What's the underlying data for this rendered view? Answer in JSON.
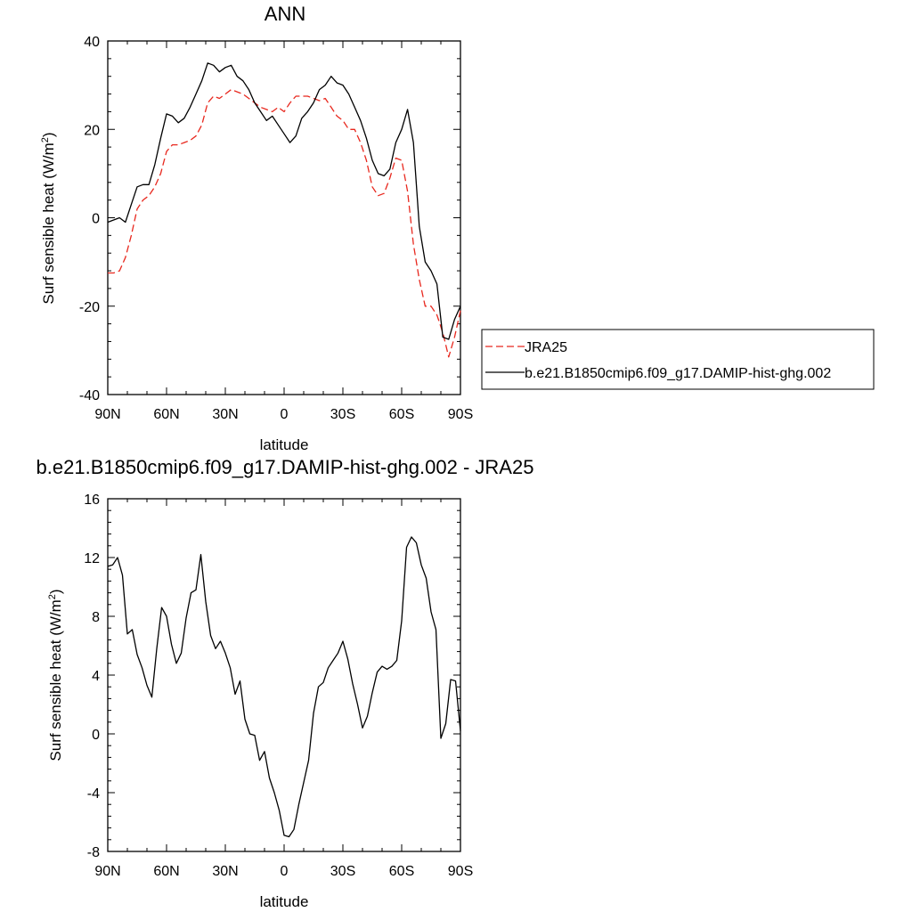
{
  "chart_data": [
    {
      "type": "line",
      "title": "ANN",
      "xlabel": "latitude",
      "ylabel": "Surf sensible heat (W/m",
      "ylabel_sup": "2",
      "ylabel_close": ")",
      "xlim": [
        90,
        -90
      ],
      "ylim": [
        -40,
        40
      ],
      "x_ticks": [
        90,
        60,
        30,
        0,
        -30,
        -60,
        -90
      ],
      "x_tick_labels": [
        "90N",
        "60N",
        "30N",
        "0",
        "30S",
        "60S",
        "90S"
      ],
      "y_ticks": [
        -40,
        -20,
        0,
        20,
        40
      ],
      "y_tick_labels": [
        "-40",
        "-20",
        "0",
        "20",
        "40"
      ],
      "legend": {
        "position": "right"
      },
      "series": [
        {
          "name": "JRA25",
          "color": "#e8281e",
          "dash": "dashed",
          "x": [
            90,
            87,
            84,
            81,
            78,
            75,
            72,
            69,
            66,
            63,
            60,
            57,
            54,
            51,
            48,
            45,
            42,
            39,
            36,
            33,
            30,
            27,
            24,
            21,
            18,
            15,
            12,
            9,
            6,
            3,
            0,
            -3,
            -6,
            -9,
            -12,
            -15,
            -18,
            -21,
            -24,
            -27,
            -30,
            -33,
            -36,
            -39,
            -42,
            -45,
            -48,
            -51,
            -54,
            -57,
            -60,
            -63,
            -66,
            -69,
            -72,
            -75,
            -78,
            -81,
            -84,
            -87,
            -90
          ],
          "values": [
            -12.5,
            -12.5,
            -12,
            -9,
            -4,
            2,
            4,
            5,
            7,
            10,
            15,
            16.5,
            16.5,
            17,
            17.5,
            18.5,
            21,
            26,
            27.5,
            27,
            28,
            29,
            28.5,
            28,
            27,
            26,
            25,
            24.5,
            24,
            25,
            24,
            26,
            27.5,
            27.5,
            27.5,
            27,
            26.5,
            27,
            25,
            23,
            22,
            20,
            20,
            17,
            13,
            7,
            5,
            5.5,
            9,
            13.5,
            13,
            6,
            -6,
            -14,
            -20,
            -20,
            -22,
            -26,
            -31.5,
            -27,
            -21
          ]
        },
        {
          "name": "b.e21.B1850cmip6.f09_g17.DAMIP-hist-ghg.002",
          "color": "#000000",
          "dash": "solid",
          "x": [
            90,
            87,
            84,
            81,
            78,
            75,
            72,
            69,
            66,
            63,
            60,
            57,
            54,
            51,
            48,
            45,
            42,
            39,
            36,
            33,
            30,
            27,
            24,
            21,
            18,
            15,
            12,
            9,
            6,
            3,
            0,
            -3,
            -6,
            -9,
            -12,
            -15,
            -18,
            -21,
            -24,
            -27,
            -30,
            -33,
            -36,
            -39,
            -42,
            -45,
            -48,
            -51,
            -54,
            -57,
            -60,
            -63,
            -66,
            -69,
            -72,
            -75,
            -78,
            -81,
            -84,
            -87,
            -90
          ],
          "values": [
            -1,
            -0.5,
            0,
            -1,
            3,
            7,
            7.5,
            7.5,
            12,
            18,
            23.5,
            23,
            21.5,
            22.5,
            25,
            28,
            31,
            35,
            34.5,
            33,
            34,
            34.5,
            32,
            31,
            29,
            26,
            24,
            22,
            23,
            21,
            19,
            17,
            18.5,
            22.5,
            24,
            26,
            29,
            30,
            32,
            30.5,
            30,
            28,
            25,
            22,
            18,
            13,
            10,
            9.5,
            11,
            17,
            20,
            24.5,
            17,
            -2,
            -10,
            -12,
            -15,
            -27,
            -27.5,
            -23,
            -20
          ]
        }
      ]
    },
    {
      "type": "line",
      "title": "b.e21.B1850cmip6.f09_g17.DAMIP-hist-ghg.002 - JRA25",
      "xlabel": "latitude",
      "ylabel": "Surf sensible heat (W/m",
      "ylabel_sup": "2",
      "ylabel_close": ")",
      "xlim": [
        90,
        -90
      ],
      "ylim": [
        -8,
        16
      ],
      "x_ticks": [
        90,
        60,
        30,
        0,
        -30,
        -60,
        -90
      ],
      "x_tick_labels": [
        "90N",
        "60N",
        "30N",
        "0",
        "30S",
        "60S",
        "90S"
      ],
      "y_ticks": [
        -8,
        -4,
        0,
        4,
        8,
        12,
        16
      ],
      "y_tick_labels": [
        "-8",
        "-4",
        "0",
        "4",
        "8",
        "12",
        "16"
      ],
      "series": [
        {
          "name": "b.e21.B1850cmip6.f09_g17.DAMIP-hist-ghg.002 - JRA25",
          "color": "#000000",
          "dash": "solid",
          "x": [
            90,
            87.5,
            85,
            82.5,
            80,
            77.5,
            75,
            72.5,
            70,
            67.5,
            65,
            62.5,
            60,
            57.5,
            55,
            52.5,
            50,
            47.5,
            45,
            42.5,
            40,
            37.5,
            35,
            32.5,
            30,
            27.5,
            25,
            22.5,
            20,
            17.5,
            15,
            12.5,
            10,
            7.5,
            5,
            2.5,
            0,
            -2.5,
            -5,
            -7.5,
            -10,
            -12.5,
            -15,
            -17.5,
            -20,
            -22.5,
            -25,
            -27.5,
            -30,
            -32.5,
            -35,
            -37.5,
            -40,
            -42.5,
            -45,
            -47.5,
            -50,
            -52.5,
            -55,
            -57.5,
            -60,
            -62.5,
            -65,
            -67.5,
            -70,
            -72.5,
            -75,
            -77.5,
            -80,
            -82.5,
            -85,
            -87.5,
            -90
          ],
          "values": [
            11.4,
            11.5,
            12,
            10.8,
            6.8,
            7.1,
            5.4,
            4.5,
            3.3,
            2.5,
            5.8,
            8.6,
            8.0,
            6.1,
            4.8,
            5.5,
            7.9,
            9.6,
            9.8,
            12.2,
            9.0,
            6.7,
            5.8,
            6.3,
            5.5,
            4.5,
            2.7,
            3.6,
            1.0,
            0.0,
            -0.1,
            -1.8,
            -1.2,
            -3.0,
            -4.0,
            -5.2,
            -6.9,
            -7.0,
            -6.5,
            -4.8,
            -3.3,
            -1.8,
            1.4,
            3.2,
            3.5,
            4.5,
            5.0,
            5.5,
            6.3,
            5.1,
            3.4,
            2.0,
            0.4,
            1.2,
            2.8,
            4.2,
            4.6,
            4.4,
            4.6,
            5.0,
            7.7,
            12.7,
            13.4,
            13.0,
            11.5,
            10.6,
            8.3,
            7.1,
            -0.3,
            0.7,
            3.7,
            3.6,
            0.2
          ]
        }
      ]
    }
  ]
}
